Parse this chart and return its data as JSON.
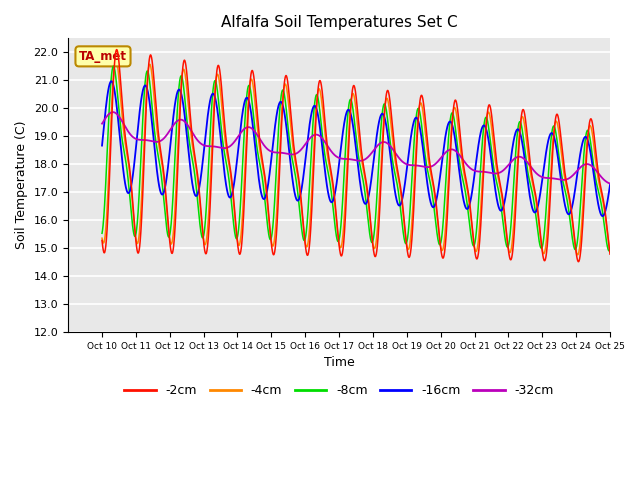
{
  "title": "Alfalfa Soil Temperatures Set C",
  "xlabel": "Time",
  "ylabel": "Soil Temperature (C)",
  "ylim": [
    12.0,
    22.5
  ],
  "yticks": [
    12.0,
    13.0,
    14.0,
    15.0,
    16.0,
    17.0,
    18.0,
    19.0,
    20.0,
    21.0,
    22.0
  ],
  "colors": {
    "-2cm": "#FF1100",
    "-4cm": "#FF8800",
    "-8cm": "#00DD00",
    "-16cm": "#0000FF",
    "-32cm": "#BB00BB"
  },
  "legend_labels": [
    "-2cm",
    "-4cm",
    "-8cm",
    "-16cm",
    "-32cm"
  ],
  "annotation_text": "TA_met",
  "annotation_bg": "#FFFFAA",
  "annotation_border": "#BB8800",
  "background_color": "#E8E8E8",
  "grid_color": "#FFFFFF",
  "xlim": [
    9.0,
    25.0
  ],
  "xtick_positions": [
    10,
    11,
    12,
    13,
    14,
    15,
    16,
    17,
    18,
    19,
    20,
    21,
    22,
    23,
    24,
    25
  ],
  "xtick_labels": [
    "Oct 10",
    "Oct 11",
    "Oct 12",
    "Oct 13",
    "Oct 14",
    "Oct 15",
    "Oct 16",
    "Oct 17",
    "Oct 18",
    "Oct 19",
    "Oct 20",
    "Oct 21",
    "Oct 22",
    "Oct 23",
    "Oct 24",
    "Oct 25"
  ]
}
